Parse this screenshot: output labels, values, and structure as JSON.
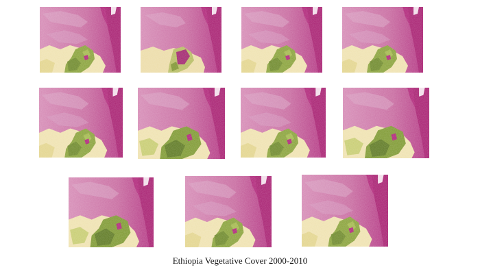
{
  "caption": "Ethiopia Vegetative Cover 2000-2010",
  "colors": {
    "background": "#ffffff",
    "no_vegetation": "#b0277a",
    "sparse_vegetation": "#c76a9d",
    "moderate_vegetation": "#eee3a8",
    "dense_vegetation": "#6f8a2c"
  },
  "maps": [
    {
      "index": 1
    },
    {
      "index": 2
    },
    {
      "index": 3
    },
    {
      "index": 4
    },
    {
      "index": 5
    },
    {
      "index": 6
    },
    {
      "index": 7
    },
    {
      "index": 8
    },
    {
      "index": 9
    },
    {
      "index": 10
    },
    {
      "index": 11
    }
  ]
}
